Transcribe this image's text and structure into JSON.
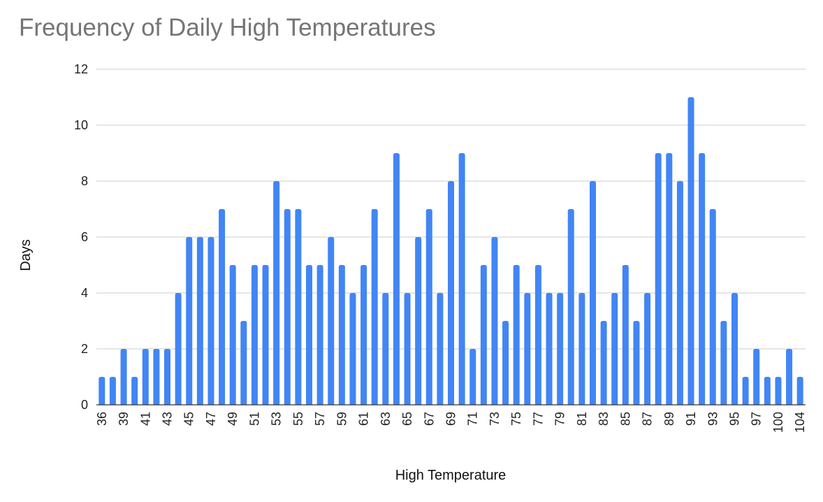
{
  "chart_data": {
    "type": "bar",
    "title": "Frequency of Daily High Temperatures",
    "xlabel": "High Temperature",
    "ylabel": "Days",
    "ylim": [
      0,
      12
    ],
    "yticks": [
      0,
      2,
      4,
      6,
      8,
      10,
      12
    ],
    "grid": true,
    "legend": "none",
    "bar_color": "#4285f4",
    "categories": [
      "36",
      "38",
      "39",
      "40",
      "41",
      "42",
      "43",
      "44",
      "45",
      "46",
      "47",
      "48",
      "49",
      "50",
      "51",
      "52",
      "53",
      "54",
      "55",
      "56",
      "57",
      "58",
      "59",
      "60",
      "61",
      "62",
      "63",
      "64",
      "65",
      "66",
      "67",
      "68",
      "69",
      "70",
      "71",
      "72",
      "73",
      "74",
      "75",
      "76",
      "77",
      "78",
      "79",
      "80",
      "81",
      "82",
      "83",
      "84",
      "85",
      "86",
      "87",
      "88",
      "89",
      "90",
      "91",
      "92",
      "93",
      "94",
      "95",
      "96",
      "97",
      "98",
      "100",
      "101",
      "104"
    ],
    "tick_labels": [
      "36",
      "39",
      "41",
      "43",
      "45",
      "47",
      "49",
      "51",
      "53",
      "55",
      "57",
      "59",
      "61",
      "63",
      "65",
      "67",
      "69",
      "71",
      "73",
      "75",
      "77",
      "79",
      "81",
      "83",
      "85",
      "87",
      "89",
      "91",
      "93",
      "95",
      "97",
      "100",
      "104"
    ],
    "values": [
      1,
      1,
      2,
      1,
      2,
      2,
      2,
      4,
      6,
      6,
      6,
      7,
      5,
      3,
      5,
      5,
      8,
      7,
      7,
      5,
      5,
      6,
      5,
      4,
      5,
      7,
      4,
      9,
      4,
      6,
      7,
      4,
      8,
      9,
      2,
      5,
      6,
      3,
      5,
      4,
      5,
      4,
      4,
      7,
      4,
      8,
      3,
      4,
      5,
      3,
      4,
      9,
      9,
      8,
      11,
      9,
      7,
      3,
      4,
      1,
      2,
      1,
      1,
      2,
      1
    ]
  }
}
